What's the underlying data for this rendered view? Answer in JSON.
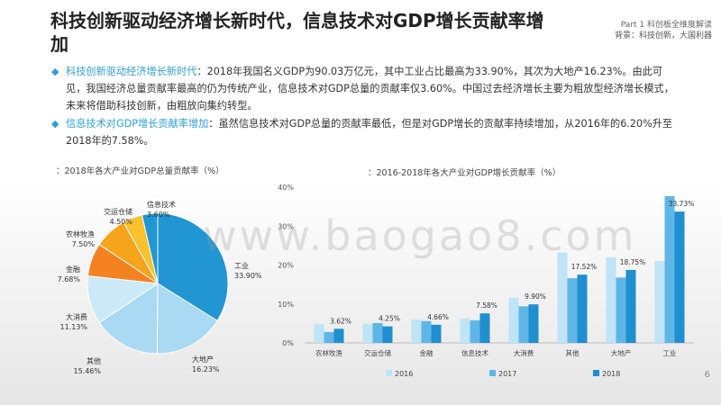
{
  "title": "科技创新驱动经济增长新时代，信息技术对GDP增长贡献率增加",
  "part": {
    "line1": "Part 1 科创板全维度解读",
    "line2": "背景：科技创新，大国利器"
  },
  "bullets": [
    {
      "highlight": "科技创新驱动经济增长新时代",
      "text": "：2018年我国名义GDP为90.03万亿元，其中工业占比最高为33.90%，其次为大地产16.23%。由此可见，我国经济总量贡献率最高的仍为传统产业，信息技术对GDP总量的贡献率仅3.60%。中国过去经济增长主要为粗放型经济增长模式，未来将借助科技创新，由粗放向集约转型。"
    },
    {
      "highlight": "信息技术对GDP增长贡献率增加",
      "text": "：虽然信息技术对GDP总量的贡献率最低，但是对GDP增长的贡献率持续增加，从2016年的6.20%升至2018年的7.58%。"
    }
  ],
  "watermark": "www.baogao8.com",
  "page_number": "6",
  "chart_data": [
    {
      "type": "pie",
      "title": "：2018年各大产业对GDP总量贡献率（%）",
      "labels": [
        "工业",
        "大地产",
        "其他",
        "大消费",
        "金融",
        "农林牧渔",
        "交运仓储",
        "信息技术"
      ],
      "values": [
        33.9,
        16.23,
        15.46,
        11.13,
        7.68,
        7.5,
        4.5,
        3.6
      ],
      "value_labels": [
        "33.90%",
        "16.23%",
        "15.46%",
        "11.13%",
        "7.68%",
        "7.50%",
        "4.50%",
        "3.60%"
      ],
      "colors": [
        "#2196d3",
        "#a9d9f3",
        "#a9d9f3",
        "#cce9f8",
        "#f58220",
        "#f7a41d",
        "#fbc02d",
        "#2196d3"
      ]
    },
    {
      "type": "bar",
      "title": "：2016-2018年各大产业对GDP增长贡献率（%）",
      "categories": [
        "农林牧渔",
        "交运仓储",
        "金融",
        "信息技术",
        "大消费",
        "其他",
        "大地产",
        "工业"
      ],
      "series": [
        {
          "name": "2016",
          "color": "#bfe3f7",
          "values": [
            4.8,
            4.9,
            6.0,
            6.2,
            11.6,
            23.2,
            22.0,
            21.0
          ]
        },
        {
          "name": "2017",
          "color": "#5fb6e6",
          "values": [
            2.8,
            5.1,
            5.6,
            5.8,
            9.4,
            16.6,
            16.8,
            37.7
          ]
        },
        {
          "name": "2018",
          "color": "#1f8fcf",
          "values": [
            3.62,
            4.25,
            4.66,
            7.58,
            9.9,
            17.52,
            18.75,
            33.73
          ]
        }
      ],
      "data_labels": [
        "3.62%",
        "4.25%",
        "4.66%",
        "7.58%",
        "9.90%",
        "17.52%",
        "18.75%",
        "33.73%"
      ],
      "yticks": [
        "0%",
        "10%",
        "20%",
        "30%",
        "40%"
      ],
      "ylim": [
        0,
        40
      ]
    }
  ]
}
